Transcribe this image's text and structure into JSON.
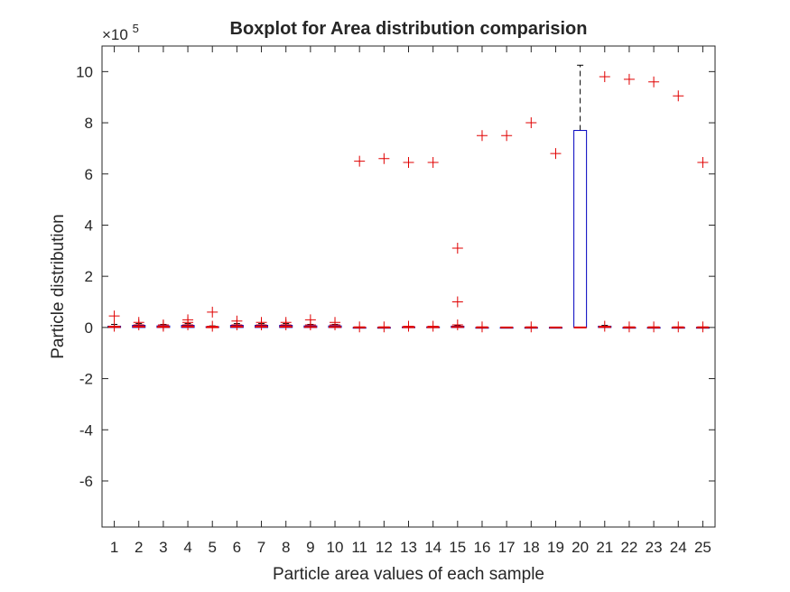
{
  "chart_data": {
    "type": "boxplot",
    "title": "Boxplot for Area distribution comparision",
    "xlabel": "Particle area values of each sample",
    "ylabel": "Particle distribution",
    "exponent_label": "×10",
    "exponent_power": "5",
    "ylim": [
      -7.8,
      11
    ],
    "yticks": [
      -6,
      -4,
      -2,
      0,
      2,
      4,
      6,
      8,
      10
    ],
    "categories": [
      "1",
      "2",
      "3",
      "4",
      "5",
      "6",
      "7",
      "8",
      "9",
      "10",
      "11",
      "12",
      "13",
      "14",
      "15",
      "16",
      "17",
      "18",
      "19",
      "20",
      "21",
      "22",
      "23",
      "24",
      "25"
    ],
    "colors": {
      "box": "#0000bf",
      "outlier": "#e00000",
      "median": "#e00000",
      "axis": "#262626"
    },
    "samples": [
      {
        "box": [
          0.0,
          0.02,
          0.05
        ],
        "whisker": [
          0,
          0.12
        ],
        "outliers": [
          0.05,
          0.45
        ]
      },
      {
        "box": [
          0.0,
          0.03,
          0.08
        ],
        "whisker": [
          0,
          0.15
        ],
        "outliers": [
          0.1,
          0.2
        ]
      },
      {
        "box": [
          0.0,
          0.02,
          0.06
        ],
        "whisker": [
          0,
          0.12
        ],
        "outliers": [
          0.05,
          0.1
        ]
      },
      {
        "box": [
          0.0,
          0.03,
          0.08
        ],
        "whisker": [
          0,
          0.15
        ],
        "outliers": [
          0.1,
          0.2,
          0.3
        ]
      },
      {
        "box": [
          0.0,
          0.01,
          0.03
        ],
        "whisker": [
          0,
          0.06
        ],
        "outliers": [
          0.05,
          0.6
        ]
      },
      {
        "box": [
          0.0,
          0.03,
          0.08
        ],
        "whisker": [
          0,
          0.15
        ],
        "outliers": [
          0.1,
          0.25
        ]
      },
      {
        "box": [
          0.0,
          0.03,
          0.08
        ],
        "whisker": [
          0,
          0.15
        ],
        "outliers": [
          0.1,
          0.2
        ]
      },
      {
        "box": [
          0.0,
          0.03,
          0.08
        ],
        "whisker": [
          0,
          0.15
        ],
        "outliers": [
          0.1,
          0.2
        ]
      },
      {
        "box": [
          0.0,
          0.02,
          0.06
        ],
        "whisker": [
          0,
          0.12
        ],
        "outliers": [
          0.1,
          0.3
        ]
      },
      {
        "box": [
          0.0,
          0.02,
          0.06
        ],
        "whisker": [
          0,
          0.12
        ],
        "outliers": [
          0.1,
          0.2
        ]
      },
      {
        "box": [
          0.0,
          0.0,
          0.0
        ],
        "whisker": [
          0,
          0
        ],
        "outliers": [
          0.02,
          6.5
        ]
      },
      {
        "box": [
          0.0,
          0.0,
          0.0
        ],
        "whisker": [
          0,
          0
        ],
        "outliers": [
          0.02,
          6.6
        ]
      },
      {
        "box": [
          0.0,
          0.01,
          0.02
        ],
        "whisker": [
          0,
          0.03
        ],
        "outliers": [
          0.05,
          6.45
        ]
      },
      {
        "box": [
          0.0,
          0.01,
          0.02
        ],
        "whisker": [
          0,
          0.03
        ],
        "outliers": [
          0.05,
          6.45
        ]
      },
      {
        "box": [
          0.0,
          0.02,
          0.05
        ],
        "whisker": [
          0,
          0.08
        ],
        "outliers": [
          0.1,
          1.0,
          3.1
        ]
      },
      {
        "box": [
          0.0,
          0.0,
          0.0
        ],
        "whisker": [
          0,
          0
        ],
        "outliers": [
          0.02,
          7.5
        ]
      },
      {
        "box": [
          0.0,
          0.0,
          0.0
        ],
        "whisker": [
          0,
          0
        ],
        "outliers": [
          7.5
        ]
      },
      {
        "box": [
          0.0,
          0.0,
          0.0
        ],
        "whisker": [
          0,
          0
        ],
        "outliers": [
          0.02,
          8.0
        ]
      },
      {
        "box": [
          0.0,
          0.0,
          0.0
        ],
        "whisker": [
          0,
          0
        ],
        "outliers": [
          6.8
        ]
      },
      {
        "box": [
          0.0,
          0.0,
          7.7
        ],
        "whisker": [
          0,
          10.25
        ],
        "outliers": []
      },
      {
        "box": [
          0.0,
          0.02,
          0.05
        ],
        "whisker": [
          0,
          0.08
        ],
        "outliers": [
          0.05,
          9.8
        ]
      },
      {
        "box": [
          0.0,
          0.0,
          0.0
        ],
        "whisker": [
          0,
          0
        ],
        "outliers": [
          0.02,
          9.7
        ]
      },
      {
        "box": [
          0.0,
          0.0,
          0.0
        ],
        "whisker": [
          0,
          0
        ],
        "outliers": [
          0.02,
          9.6
        ]
      },
      {
        "box": [
          0.0,
          0.0,
          0.0
        ],
        "whisker": [
          0,
          0
        ],
        "outliers": [
          0.02,
          9.05
        ]
      },
      {
        "box": [
          0.0,
          0.0,
          0.0
        ],
        "whisker": [
          0,
          0
        ],
        "outliers": [
          0.02,
          6.45
        ]
      }
    ]
  }
}
